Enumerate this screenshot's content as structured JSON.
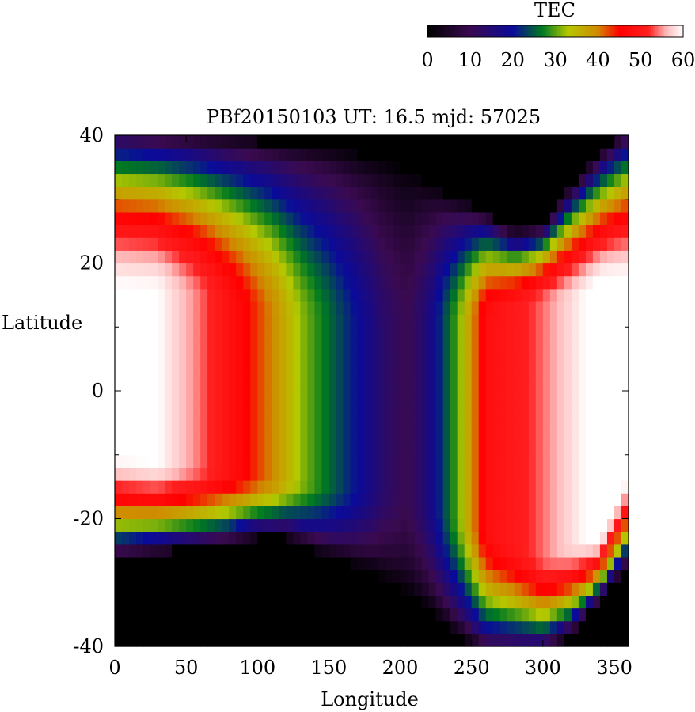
{
  "chart_data": {
    "type": "heatmap",
    "title": "PBf20150103  UT: 16.5  mjd: 57025",
    "xlabel": "Longitude",
    "ylabel": "Latitude",
    "xlim": [
      0,
      360
    ],
    "ylim": [
      -40,
      40
    ],
    "x_ticks": [
      "0",
      "50",
      "100",
      "150",
      "200",
      "250",
      "300",
      "350"
    ],
    "y_ticks": [
      "-40",
      "-20",
      "0",
      "20",
      "40"
    ],
    "x_tick_values": [
      0,
      50,
      100,
      150,
      200,
      250,
      300,
      350
    ],
    "y_tick_values": [
      -40,
      -20,
      0,
      20,
      40
    ],
    "grid": false,
    "cell_size_deg": [
      5,
      2
    ],
    "colorbar": {
      "label": "TEC",
      "range": [
        0,
        60
      ],
      "ticks": [
        "0",
        "10",
        "20",
        "30",
        "40",
        "50",
        "60"
      ],
      "tick_values": [
        0,
        10,
        20,
        30,
        40,
        50,
        60
      ],
      "colormap": [
        {
          "v": 0,
          "color": "#000000"
        },
        {
          "v": 10,
          "color": "#3a0a50"
        },
        {
          "v": 20,
          "color": "#0a0a9a"
        },
        {
          "v": 27,
          "color": "#007a20"
        },
        {
          "v": 33,
          "color": "#b4c800"
        },
        {
          "v": 40,
          "color": "#d08a00"
        },
        {
          "v": 45,
          "color": "#ff0000"
        },
        {
          "v": 52,
          "color": "#ff2020"
        },
        {
          "v": 56,
          "color": "#ffb8b8"
        },
        {
          "v": 60,
          "color": "#ffffff"
        }
      ]
    },
    "profile_points": {
      "north_void_lat": [
        [
          0,
          41
        ],
        [
          50,
          40
        ],
        [
          150,
          38
        ],
        [
          190,
          36
        ],
        [
          210,
          34
        ],
        [
          240,
          30
        ],
        [
          260,
          28
        ],
        [
          280,
          25
        ],
        [
          300,
          26
        ],
        [
          320,
          32
        ],
        [
          340,
          37
        ],
        [
          360,
          41
        ]
      ],
      "south_void_lat": [
        [
          0,
          -26
        ],
        [
          40,
          -25
        ],
        [
          80,
          -24
        ],
        [
          100,
          -23
        ],
        [
          120,
          -23
        ],
        [
          140,
          -25
        ],
        [
          180,
          -28
        ],
        [
          200,
          -31
        ],
        [
          220,
          -34
        ],
        [
          240,
          -38
        ],
        [
          260,
          -41
        ],
        [
          300,
          -41
        ],
        [
          320,
          -38
        ],
        [
          340,
          -33
        ],
        [
          360,
          -27
        ]
      ],
      "equator_peak_tec": [
        [
          0,
          60
        ],
        [
          30,
          60
        ],
        [
          60,
          54
        ],
        [
          90,
          46
        ],
        [
          110,
          40
        ],
        [
          130,
          32
        ],
        [
          150,
          26
        ],
        [
          170,
          20
        ],
        [
          190,
          13
        ],
        [
          205,
          10
        ],
        [
          220,
          16
        ],
        [
          240,
          30
        ],
        [
          260,
          48
        ],
        [
          290,
          52
        ],
        [
          320,
          58
        ],
        [
          340,
          62
        ],
        [
          360,
          61
        ]
      ],
      "crest_latitude_north": [
        [
          0,
          16
        ],
        [
          60,
          15
        ],
        [
          120,
          12
        ],
        [
          200,
          10
        ],
        [
          260,
          12
        ],
        [
          300,
          14
        ],
        [
          340,
          15
        ],
        [
          360,
          16
        ]
      ],
      "crest_latitude_south": [
        [
          0,
          -10
        ],
        [
          60,
          -12
        ],
        [
          120,
          -14
        ],
        [
          200,
          -16
        ],
        [
          260,
          -22
        ],
        [
          300,
          -26
        ],
        [
          340,
          -22
        ],
        [
          360,
          -12
        ]
      ]
    }
  }
}
